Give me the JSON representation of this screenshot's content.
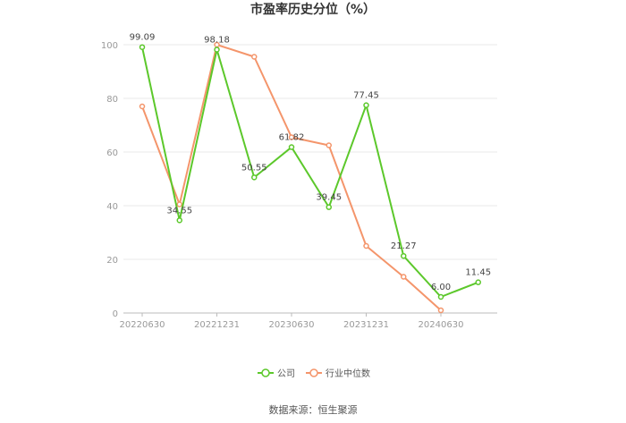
{
  "chart_data": {
    "type": "line",
    "title": "市盈率历史分位（%）",
    "x": [
      "20220630",
      "20220930",
      "20221231",
      "20230331",
      "20230630",
      "20230930",
      "20231231",
      "20240331",
      "20240630",
      "20240930"
    ],
    "x_tick_labels": [
      "20220630",
      "20221231",
      "20230630",
      "20231231",
      "20240630"
    ],
    "ylim": [
      0,
      100
    ],
    "y_ticks": [
      0,
      20,
      40,
      60,
      80,
      100
    ],
    "grid": true,
    "legend_position": "bottom-center",
    "series": [
      {
        "name": "公司",
        "color": "#5cc82b",
        "values": [
          99.09,
          34.55,
          98.18,
          50.55,
          61.82,
          39.45,
          77.45,
          21.27,
          6.0,
          11.45
        ],
        "labels": [
          "99.09",
          "34.55",
          "98.18",
          "50.55",
          "61.82",
          "39.45",
          "77.45",
          "21.27",
          "6.00",
          "11.45"
        ]
      },
      {
        "name": "行业中位数",
        "color": "#f4956b",
        "values": [
          77,
          40.5,
          100,
          95.5,
          65.5,
          62.5,
          25,
          13.5,
          1,
          null
        ]
      }
    ]
  },
  "source": "数据来源：恒生聚源"
}
